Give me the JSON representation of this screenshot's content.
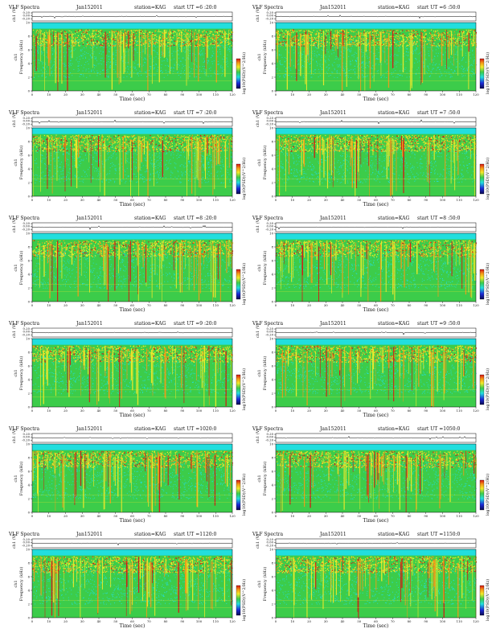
{
  "chart_data": [
    {
      "type": "heatmap",
      "title": "VLF Spectra",
      "date": "Jan152011",
      "station": "station=KAG",
      "start": "start  UT  =6 :20:0",
      "top_ylabel": "ch1 (V)",
      "top_ticks": [
        "0.20",
        "0.00",
        "-0.20"
      ],
      "xlabel": "Time  (sec)",
      "ylabel_top": "ch1",
      "ylabel": "Frequency  (kHz)",
      "colorbar_label": "log10(PSD)(V^2/Hz)",
      "x_ticks": [
        "0",
        "10",
        "20",
        "30",
        "40",
        "50",
        "60",
        "70",
        "80",
        "90",
        "100",
        "110",
        "120"
      ],
      "y_ticks": [
        "0",
        "2",
        "4",
        "6",
        "8",
        "10"
      ],
      "xlim": [
        0,
        120
      ],
      "ylim": [
        0,
        10
      ]
    },
    {
      "type": "heatmap",
      "title": "VLF Spectra",
      "date": "Jan152011",
      "station": "station=KAG",
      "start": "start  UT  =6 :50:0",
      "top_ylabel": "ch1 (V)",
      "top_ticks": [
        "0.20",
        "0.00",
        "-0.20"
      ],
      "xlabel": "Time  (sec)",
      "ylabel_top": "ch1",
      "ylabel": "Frequency  (kHz)",
      "colorbar_label": "log10(PSD)(V^2/Hz)",
      "x_ticks": [
        "0",
        "10",
        "20",
        "30",
        "40",
        "50",
        "60",
        "70",
        "80",
        "90",
        "100",
        "110",
        "120"
      ],
      "y_ticks": [
        "0",
        "2",
        "4",
        "6",
        "8",
        "10"
      ],
      "xlim": [
        0,
        120
      ],
      "ylim": [
        0,
        10
      ]
    },
    {
      "type": "heatmap",
      "title": "VLF Spectra",
      "date": "Jan152011",
      "station": "station=KAG",
      "start": "start  UT  =7 :20:0",
      "top_ylabel": "ch1 (V)",
      "top_ticks": [
        "0.20",
        "0.00",
        "-0.20"
      ],
      "xlabel": "Time  (sec)",
      "ylabel_top": "ch1",
      "ylabel": "Frequency  (kHz)",
      "colorbar_label": "log10(PSD)(V^2/Hz)",
      "x_ticks": [
        "0",
        "10",
        "20",
        "30",
        "40",
        "50",
        "60",
        "70",
        "80",
        "90",
        "100",
        "110",
        "120"
      ],
      "y_ticks": [
        "0",
        "2",
        "4",
        "6",
        "8",
        "10"
      ],
      "xlim": [
        0,
        120
      ],
      "ylim": [
        0,
        10
      ]
    },
    {
      "type": "heatmap",
      "title": "VLF Spectra",
      "date": "Jan152011",
      "station": "station=KAG",
      "start": "start  UT  =7 :50:0",
      "top_ylabel": "ch1 (V)",
      "top_ticks": [
        "0.20",
        "0.00",
        "-0.20"
      ],
      "xlabel": "Time  (sec)",
      "ylabel_top": "ch1",
      "ylabel": "Frequency  (kHz)",
      "colorbar_label": "log10(PSD)(V^2/Hz)",
      "x_ticks": [
        "0",
        "10",
        "20",
        "30",
        "40",
        "50",
        "60",
        "70",
        "80",
        "90",
        "100",
        "110",
        "120"
      ],
      "y_ticks": [
        "0",
        "2",
        "4",
        "6",
        "8",
        "10"
      ],
      "xlim": [
        0,
        120
      ],
      "ylim": [
        0,
        10
      ]
    },
    {
      "type": "heatmap",
      "title": "VLF Spectra",
      "date": "Jan152011",
      "station": "station=KAG",
      "start": "start  UT  =8 :20:0",
      "top_ylabel": "ch1 (V)",
      "top_ticks": [
        "0.20",
        "0.00",
        "-0.20"
      ],
      "xlabel": "Time  (sec)",
      "ylabel_top": "ch1",
      "ylabel": "Frequency  (kHz)",
      "colorbar_label": "log10(PSD)(V^2/Hz)",
      "x_ticks": [
        "0",
        "10",
        "20",
        "30",
        "40",
        "50",
        "60",
        "70",
        "80",
        "90",
        "100",
        "110",
        "120"
      ],
      "y_ticks": [
        "0",
        "2",
        "4",
        "6",
        "8",
        "10"
      ],
      "xlim": [
        0,
        120
      ],
      "ylim": [
        0,
        10
      ]
    },
    {
      "type": "heatmap",
      "title": "VLF Spectra",
      "date": "Jan152011",
      "station": "station=KAG",
      "start": "start  UT  =8 :50:0",
      "top_ylabel": "ch1 (V)",
      "top_ticks": [
        "0.20",
        "0.00",
        "-0.20"
      ],
      "xlabel": "Time  (sec)",
      "ylabel_top": "ch1",
      "ylabel": "Frequency  (kHz)",
      "colorbar_label": "log10(PSD)(V^2/Hz)",
      "x_ticks": [
        "0",
        "10",
        "20",
        "30",
        "40",
        "50",
        "60",
        "70",
        "80",
        "90",
        "100",
        "110",
        "120"
      ],
      "y_ticks": [
        "0",
        "2",
        "4",
        "6",
        "8",
        "10"
      ],
      "xlim": [
        0,
        120
      ],
      "ylim": [
        0,
        10
      ]
    },
    {
      "type": "heatmap",
      "title": "VLF Spectra",
      "date": "Jan152011",
      "station": "station=KAG",
      "start": "start  UT  =9 :20:0",
      "top_ylabel": "ch1 (V)",
      "top_ticks": [
        "0.20",
        "0.00",
        "-0.20"
      ],
      "xlabel": "Time  (sec)",
      "ylabel_top": "ch1",
      "ylabel": "Frequency  (kHz)",
      "colorbar_label": "log10(PSD)(V^2/Hz)",
      "x_ticks": [
        "0",
        "10",
        "20",
        "30",
        "40",
        "50",
        "60",
        "70",
        "80",
        "90",
        "100",
        "110",
        "120"
      ],
      "y_ticks": [
        "0",
        "2",
        "4",
        "6",
        "8",
        "10"
      ],
      "xlim": [
        0,
        120
      ],
      "ylim": [
        0,
        10
      ]
    },
    {
      "type": "heatmap",
      "title": "VLF Spectra",
      "date": "Jan152011",
      "station": "station=KAG",
      "start": "start  UT  =9 :50:0",
      "top_ylabel": "ch1 (V)",
      "top_ticks": [
        "0.20",
        "0.00",
        "-0.20"
      ],
      "xlabel": "Time  (sec)",
      "ylabel_top": "ch1",
      "ylabel": "Frequency  (kHz)",
      "colorbar_label": "log10(PSD)(V^2/Hz)",
      "x_ticks": [
        "0",
        "10",
        "20",
        "30",
        "40",
        "50",
        "60",
        "70",
        "80",
        "90",
        "100",
        "110",
        "120"
      ],
      "y_ticks": [
        "0",
        "2",
        "4",
        "6",
        "8",
        "10"
      ],
      "xlim": [
        0,
        120
      ],
      "ylim": [
        0,
        10
      ]
    },
    {
      "type": "heatmap",
      "title": "VLF Spectra",
      "date": "Jan152011",
      "station": "station=KAG",
      "start": "start  UT  =1020:0",
      "top_ylabel": "ch1 (V)",
      "top_ticks": [
        "0.20",
        "0.00",
        "-0.20"
      ],
      "xlabel": "Time  (sec)",
      "ylabel_top": "ch1",
      "ylabel": "Frequency  (kHz)",
      "colorbar_label": "log10(PSD)(V^2/Hz)",
      "x_ticks": [
        "0",
        "10",
        "20",
        "30",
        "40",
        "50",
        "60",
        "70",
        "80",
        "90",
        "100",
        "110",
        "120"
      ],
      "y_ticks": [
        "0",
        "2",
        "4",
        "6",
        "8",
        "10"
      ],
      "xlim": [
        0,
        120
      ],
      "ylim": [
        0,
        10
      ]
    },
    {
      "type": "heatmap",
      "title": "VLF Spectra",
      "date": "Jan152011",
      "station": "station=KAG",
      "start": "start  UT  =1050:0",
      "top_ylabel": "ch1 (V)",
      "top_ticks": [
        "0.20",
        "0.00",
        "-0.20"
      ],
      "xlabel": "Time  (sec)",
      "ylabel_top": "ch1",
      "ylabel": "Frequency  (kHz)",
      "colorbar_label": "log10(PSD)(V^2/Hz)",
      "x_ticks": [
        "0",
        "10",
        "20",
        "30",
        "40",
        "50",
        "60",
        "70",
        "80",
        "90",
        "100",
        "110",
        "120"
      ],
      "y_ticks": [
        "0",
        "2",
        "4",
        "6",
        "8",
        "10"
      ],
      "xlim": [
        0,
        120
      ],
      "ylim": [
        0,
        10
      ]
    },
    {
      "type": "heatmap",
      "title": "VLF Spectra",
      "date": "Jan152011",
      "station": "station=KAG",
      "start": "start  UT  =1120:0",
      "top_ylabel": "ch1 (V)",
      "top_ticks": [
        "0.20",
        "0.00",
        "-0.20"
      ],
      "xlabel": "Time  (sec)",
      "ylabel_top": "ch1",
      "ylabel": "Frequency  (kHz)",
      "colorbar_label": "log10(PSD)(V^2/Hz)",
      "x_ticks": [
        "0",
        "10",
        "20",
        "30",
        "40",
        "50",
        "60",
        "70",
        "80",
        "90",
        "100",
        "110",
        "120"
      ],
      "y_ticks": [
        "0",
        "2",
        "4",
        "6",
        "8",
        "10"
      ],
      "xlim": [
        0,
        120
      ],
      "ylim": [
        0,
        10
      ]
    },
    {
      "type": "heatmap",
      "title": "VLF Spectra",
      "date": "Jan152011",
      "station": "station=KAG",
      "start": "start  UT  =1150:0",
      "top_ylabel": "ch1 (V)",
      "top_ticks": [
        "0.20",
        "0.00",
        "-0.20"
      ],
      "xlabel": "Time  (sec)",
      "ylabel_top": "ch1",
      "ylabel": "Frequency  (kHz)",
      "colorbar_label": "log10(PSD)(V^2/Hz)",
      "x_ticks": [
        "0",
        "10",
        "20",
        "30",
        "40",
        "50",
        "60",
        "70",
        "80",
        "90",
        "100",
        "110",
        "120"
      ],
      "y_ticks": [
        "0",
        "2",
        "4",
        "6",
        "8",
        "10"
      ],
      "xlim": [
        0,
        120
      ],
      "ylim": [
        0,
        10
      ]
    }
  ],
  "colors": {
    "background": "#ffffff",
    "cyan": "#22dede",
    "green": "#3ccc4a",
    "yellow": "#f2ea2a",
    "orange": "#f59a18",
    "red": "#d81212",
    "blue": "#1a2ad8",
    "dark_navy": "#0a0a50"
  }
}
